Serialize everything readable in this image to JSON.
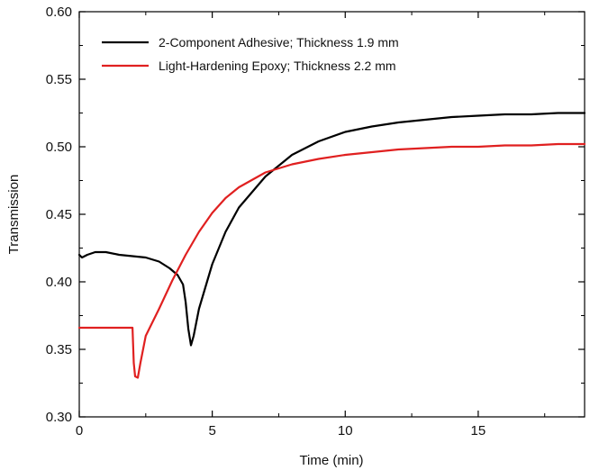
{
  "chart_data": {
    "type": "line",
    "title": "",
    "xlabel": "Time (min)",
    "ylabel": "Transmission",
    "xlim": [
      0,
      19
    ],
    "ylim": [
      0.3,
      0.6
    ],
    "xticks": [
      0,
      5,
      10,
      15
    ],
    "xtick_labels": [
      "0",
      "5",
      "10",
      "15"
    ],
    "yticks": [
      0.3,
      0.35,
      0.4,
      0.45,
      0.5,
      0.55,
      0.6
    ],
    "ytick_labels": [
      "0.30",
      "0.35",
      "0.40",
      "0.45",
      "0.50",
      "0.55",
      "0.60"
    ],
    "grid": false,
    "legend_position": "top-left",
    "series": [
      {
        "name": "2-Component Adhesive; Thickness 1.9 mm",
        "color": "#000000",
        "x": [
          0,
          0.1,
          0.3,
          0.6,
          1.0,
          1.5,
          2.0,
          2.5,
          3.0,
          3.4,
          3.7,
          3.9,
          4.0,
          4.1,
          4.2,
          4.3,
          4.5,
          5.0,
          5.5,
          6.0,
          7.0,
          8.0,
          9.0,
          10.0,
          11.0,
          12.0,
          13.0,
          14.0,
          15.0,
          16.0,
          17.0,
          18.0,
          19.0
        ],
        "y": [
          0.42,
          0.418,
          0.42,
          0.422,
          0.422,
          0.42,
          0.419,
          0.418,
          0.415,
          0.41,
          0.405,
          0.398,
          0.385,
          0.365,
          0.353,
          0.36,
          0.38,
          0.413,
          0.437,
          0.455,
          0.478,
          0.494,
          0.504,
          0.511,
          0.515,
          0.518,
          0.52,
          0.522,
          0.523,
          0.524,
          0.524,
          0.525,
          0.525
        ]
      },
      {
        "name": "Light-Hardening Epoxy; Thickness 2.2 mm",
        "color": "#e02020",
        "x": [
          0,
          0.5,
          1.0,
          1.5,
          1.9,
          2.0,
          2.05,
          2.1,
          2.2,
          2.3,
          2.5,
          3.0,
          3.5,
          4.0,
          4.5,
          5.0,
          5.5,
          6.0,
          7.0,
          8.0,
          9.0,
          10.0,
          11.0,
          12.0,
          13.0,
          14.0,
          15.0,
          16.0,
          17.0,
          18.0,
          19.0
        ],
        "y": [
          0.366,
          0.366,
          0.366,
          0.366,
          0.366,
          0.366,
          0.34,
          0.33,
          0.329,
          0.34,
          0.36,
          0.38,
          0.401,
          0.42,
          0.437,
          0.451,
          0.462,
          0.47,
          0.481,
          0.487,
          0.491,
          0.494,
          0.496,
          0.498,
          0.499,
          0.5,
          0.5,
          0.501,
          0.501,
          0.502,
          0.502
        ]
      }
    ]
  }
}
